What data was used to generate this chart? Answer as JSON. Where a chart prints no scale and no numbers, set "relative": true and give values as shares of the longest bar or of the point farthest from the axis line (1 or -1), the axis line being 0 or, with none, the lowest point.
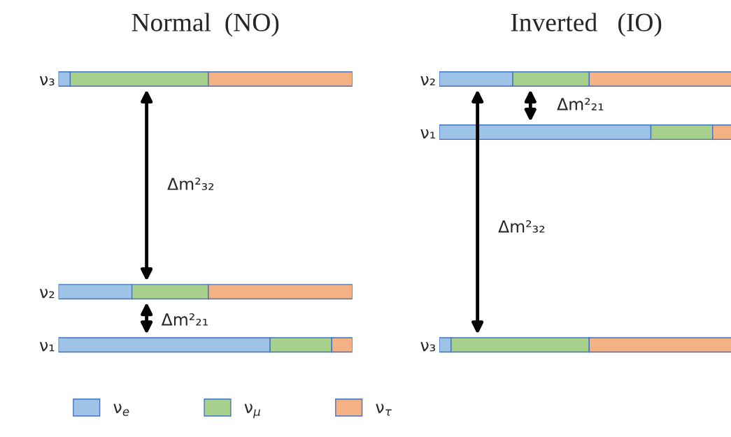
{
  "chart_data": [
    {
      "type": "bar",
      "orientation": "horizontal",
      "stacked": true,
      "relative": true,
      "title": "Normal  (NO)",
      "categories": [
        "ν₃",
        null,
        null,
        null,
        "ν₂",
        "ν₁"
      ],
      "tick_labels": "y",
      "legend": "bottom",
      "series": [
        {
          "name": "ν$_{e}$",
          "color": "#9dc3e6",
          "values": [
            0.04,
            null,
            null,
            null,
            0.25,
            0.72
          ]
        },
        {
          "name": "ν$_{μ}$",
          "color": "#a9d18e",
          "values": [
            0.47,
            null,
            null,
            null,
            0.26,
            0.21
          ]
        },
        {
          "name": "ν$_{τ}$",
          "color": "#f4b183",
          "values": [
            0.49,
            null,
            null,
            null,
            0.49,
            0.07
          ]
        }
      ],
      "annotations": [
        "Δm²₃₂",
        "Δm²₂₁"
      ]
    },
    {
      "type": "bar",
      "orientation": "horizontal",
      "stacked": true,
      "relative": true,
      "title": "Inverted   (IO)",
      "categories": [
        "ν₂",
        "ν₁",
        null,
        null,
        null,
        "ν₃"
      ],
      "tick_labels": "y",
      "legend": false,
      "series": [
        {
          "color": "#9dc3e6",
          "values": [
            0.25,
            0.72,
            null,
            null,
            null,
            0.04
          ]
        },
        {
          "color": "#a9d18e",
          "values": [
            0.26,
            0.21,
            null,
            null,
            null,
            0.47
          ]
        },
        {
          "color": "#f4b183",
          "values": [
            0.49,
            0.07,
            null,
            null,
            null,
            0.49
          ]
        }
      ],
      "annotations": [
        "Δm²₂₁",
        "Δm²₃₂"
      ]
    }
  ]
}
